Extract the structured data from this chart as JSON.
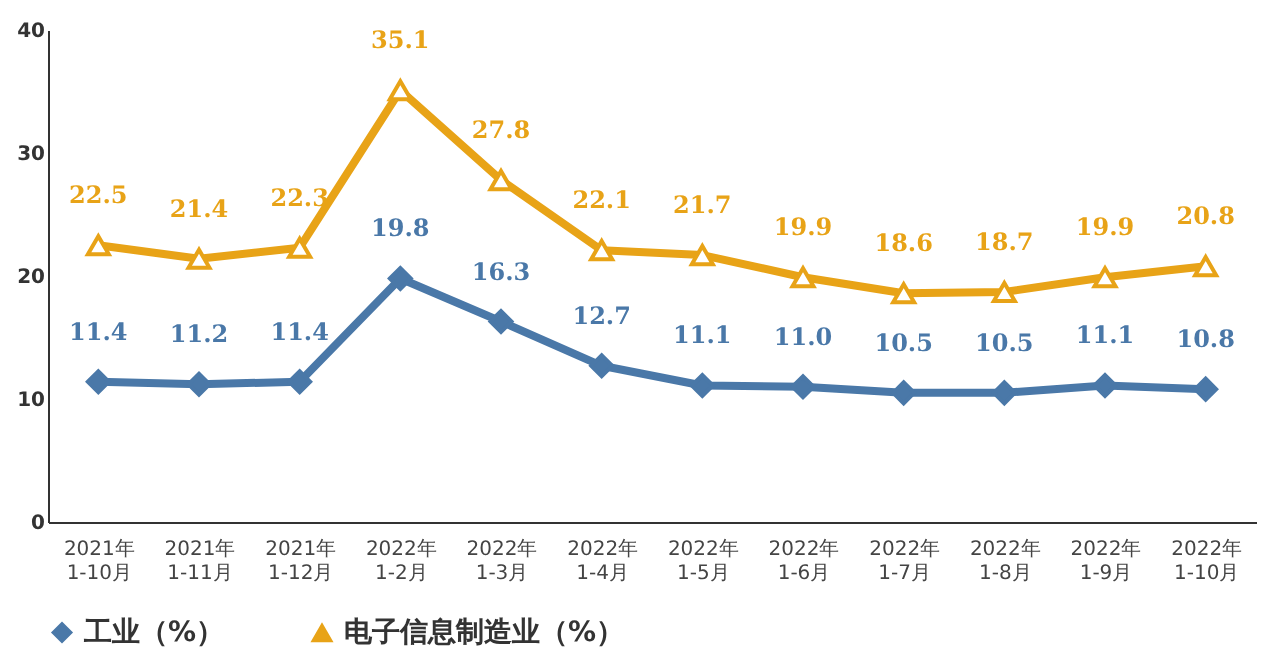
{
  "chart_data": {
    "type": "line",
    "categories": [
      "2021年\n1-10月",
      "2021年\n1-11月",
      "2021年\n1-12月",
      "2022年\n1-2月",
      "2022年\n1-3月",
      "2022年\n1-4月",
      "2022年\n1-5月",
      "2022年\n1-6月",
      "2022年\n1-7月",
      "2022年\n1-8月",
      "2022年\n1-9月",
      "2022年\n1-10月"
    ],
    "series": [
      {
        "name": "工业（%）",
        "color": "#4a78a8",
        "marker": "diamond",
        "values": [
          11.4,
          11.2,
          11.4,
          19.8,
          16.3,
          12.7,
          11.1,
          11.0,
          10.5,
          10.5,
          11.1,
          10.8
        ],
        "value_labels": [
          "11.4",
          "11.2",
          "11.4",
          "19.8",
          "16.3",
          "12.7",
          "11.1",
          "11.0",
          "10.5",
          "10.5",
          "11.1",
          "10.8"
        ]
      },
      {
        "name": "电子信息制造业（%）",
        "color": "#e8a317",
        "marker": "triangle",
        "values": [
          22.5,
          21.4,
          22.3,
          35.1,
          27.8,
          22.1,
          21.7,
          19.9,
          18.6,
          18.7,
          19.9,
          20.8
        ],
        "value_labels": [
          "22.5",
          "21.4",
          "22.3",
          "35.1",
          "27.8",
          "22.1",
          "21.7",
          "19.9",
          "18.6",
          "18.7",
          "19.9",
          "20.8"
        ]
      }
    ],
    "ylim": [
      0,
      40
    ],
    "yticks": [
      0,
      10,
      20,
      30,
      40
    ],
    "grid": false,
    "legend": "bottom",
    "data_labels": true,
    "line_style": "solid"
  }
}
